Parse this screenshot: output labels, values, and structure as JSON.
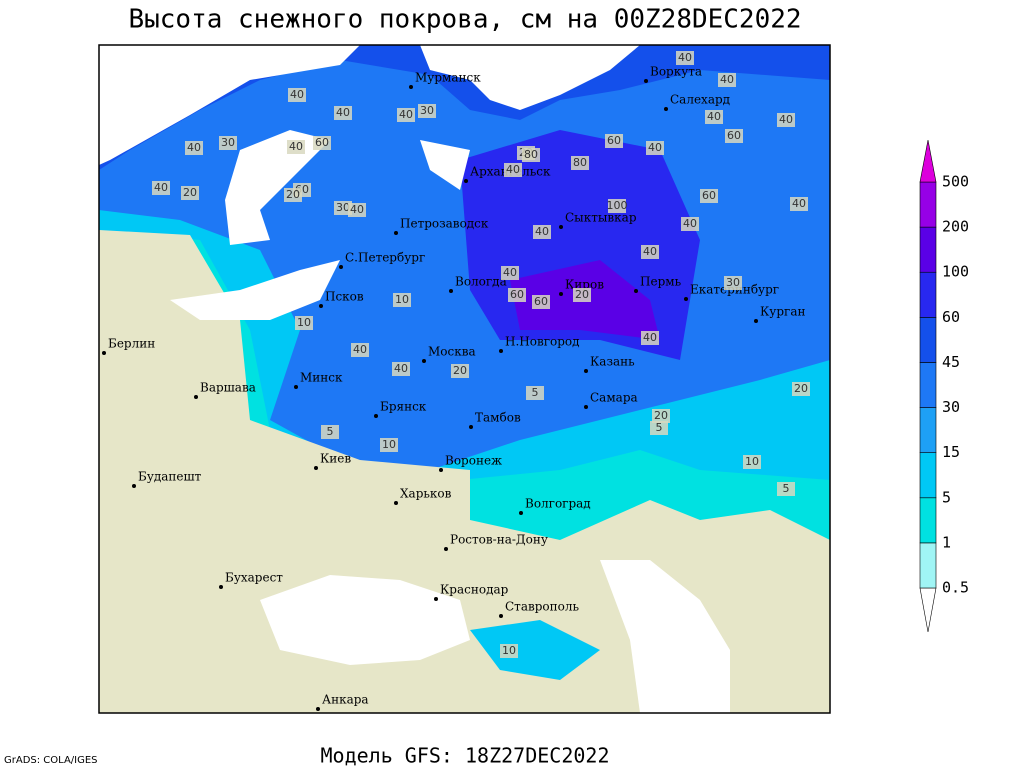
{
  "title": "Высота снежного покрова, см на 00Z28DEC2022",
  "subtitle": "Модель GFS: 18Z27DEC2022",
  "footer": "GrADS: COLA/IGES",
  "cities": [
    "Мурманск",
    "Воркута",
    "Салехард",
    "Архангельск",
    "Сыктывкар",
    "Петрозаводск",
    "С.Петербург",
    "Вологда",
    "Киров",
    "Пермь",
    "Екатеринбург",
    "Курган",
    "Псков",
    "Берлин",
    "Москва",
    "Н.Новгород",
    "Казань",
    "Минск",
    "Варшава",
    "Самара",
    "Брянск",
    "Тамбов",
    "Киев",
    "Воронеж",
    "Будапешт",
    "Харьков",
    "Волгоград",
    "Ростов-на-Дону",
    "Бухарест",
    "Краснодар",
    "Ставрополь",
    "Анкара"
  ],
  "contour_labels": [
    40,
    40,
    60,
    40,
    30,
    40,
    30,
    40,
    20,
    40,
    40,
    60,
    40,
    40,
    80,
    80,
    60,
    40,
    40,
    60,
    40,
    30,
    20,
    40,
    40,
    60,
    40,
    100,
    40,
    30,
    40,
    60,
    60,
    40,
    20,
    10,
    40,
    10,
    40,
    40,
    20,
    5,
    5,
    20,
    10,
    20,
    5,
    10,
    10,
    20,
    5
  ],
  "colorbar": {
    "levels": [
      0.5,
      1,
      5,
      15,
      30,
      45,
      60,
      100,
      200,
      500
    ],
    "colors": [
      "#ffffff",
      "#a0f5f5",
      "#00e1e1",
      "#00c8f5",
      "#1ea0f5",
      "#1e78f5",
      "#1450eb",
      "#2828f0",
      "#5a00e6",
      "#9600e6",
      "#dc00dc"
    ]
  }
}
